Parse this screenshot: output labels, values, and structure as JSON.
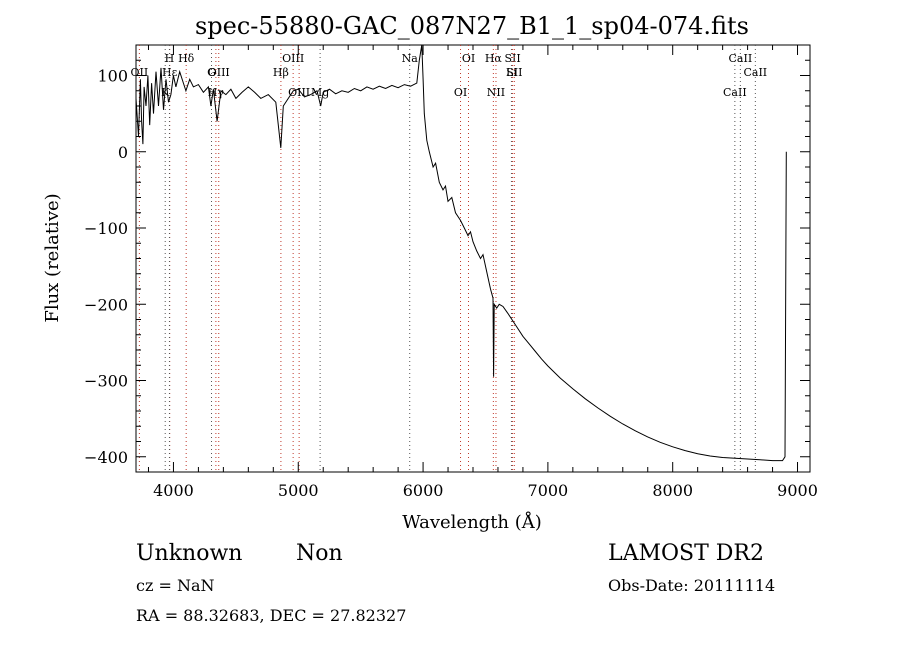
{
  "chart_data": {
    "type": "line",
    "title": "spec-55880-GAC_087N27_B1_1_sp04-074.fits",
    "xlabel": "Wavelength (Å)",
    "ylabel": "Flux (relative)",
    "xlim": [
      3700,
      9100
    ],
    "ylim": [
      -420,
      140
    ],
    "x_ticks": [
      4000,
      5000,
      6000,
      7000,
      8000,
      9000
    ],
    "y_ticks": [
      100,
      0,
      -100,
      -200,
      -300,
      -400
    ],
    "grid": false,
    "series": [
      {
        "values": [
          [
            3700,
            70
          ],
          [
            3720,
            20
          ],
          [
            3735,
            95
          ],
          [
            3745,
            40
          ],
          [
            3755,
            10
          ],
          [
            3765,
            85
          ],
          [
            3780,
            60
          ],
          [
            3795,
            100
          ],
          [
            3810,
            35
          ],
          [
            3825,
            90
          ],
          [
            3840,
            50
          ],
          [
            3860,
            105
          ],
          [
            3880,
            60
          ],
          [
            3900,
            110
          ],
          [
            3920,
            55
          ],
          [
            3940,
            95
          ],
          [
            3960,
            65
          ],
          [
            3980,
            75
          ],
          [
            4000,
            100
          ],
          [
            4020,
            85
          ],
          [
            4050,
            105
          ],
          [
            4080,
            90
          ],
          [
            4100,
            80
          ],
          [
            4130,
            95
          ],
          [
            4160,
            85
          ],
          [
            4200,
            88
          ],
          [
            4240,
            78
          ],
          [
            4280,
            85
          ],
          [
            4300,
            60
          ],
          [
            4320,
            82
          ],
          [
            4350,
            40
          ],
          [
            4380,
            80
          ],
          [
            4420,
            75
          ],
          [
            4460,
            82
          ],
          [
            4500,
            70
          ],
          [
            4550,
            78
          ],
          [
            4600,
            85
          ],
          [
            4650,
            78
          ],
          [
            4700,
            70
          ],
          [
            4760,
            75
          ],
          [
            4820,
            65
          ],
          [
            4860,
            5
          ],
          [
            4880,
            60
          ],
          [
            4920,
            70
          ],
          [
            4960,
            80
          ],
          [
            5000,
            82
          ],
          [
            5050,
            72
          ],
          [
            5100,
            75
          ],
          [
            5150,
            80
          ],
          [
            5180,
            60
          ],
          [
            5200,
            78
          ],
          [
            5250,
            82
          ],
          [
            5300,
            76
          ],
          [
            5350,
            80
          ],
          [
            5400,
            78
          ],
          [
            5450,
            83
          ],
          [
            5500,
            80
          ],
          [
            5550,
            85
          ],
          [
            5600,
            82
          ],
          [
            5650,
            86
          ],
          [
            5700,
            83
          ],
          [
            5750,
            87
          ],
          [
            5800,
            84
          ],
          [
            5850,
            88
          ],
          [
            5900,
            86
          ],
          [
            5950,
            90
          ],
          [
            5970,
            120
          ],
          [
            5990,
            140
          ],
          [
            6000,
            95
          ],
          [
            6010,
            50
          ],
          [
            6030,
            15
          ],
          [
            6050,
            0
          ],
          [
            6080,
            -20
          ],
          [
            6100,
            -15
          ],
          [
            6130,
            -40
          ],
          [
            6160,
            -50
          ],
          [
            6180,
            -45
          ],
          [
            6200,
            -65
          ],
          [
            6230,
            -60
          ],
          [
            6260,
            -80
          ],
          [
            6300,
            -90
          ],
          [
            6330,
            -100
          ],
          [
            6360,
            -110
          ],
          [
            6380,
            -105
          ],
          [
            6400,
            -118
          ],
          [
            6430,
            -130
          ],
          [
            6460,
            -140
          ],
          [
            6480,
            -135
          ],
          [
            6500,
            -150
          ],
          [
            6520,
            -165
          ],
          [
            6540,
            -180
          ],
          [
            6560,
            -192
          ],
          [
            6565,
            -295
          ],
          [
            6570,
            -200
          ],
          [
            6590,
            -205
          ],
          [
            6610,
            -200
          ],
          [
            6640,
            -203
          ],
          [
            6680,
            -212
          ],
          [
            6720,
            -222
          ],
          [
            6760,
            -232
          ],
          [
            6800,
            -242
          ],
          [
            6850,
            -252
          ],
          [
            6900,
            -262
          ],
          [
            6950,
            -272
          ],
          [
            7000,
            -281
          ],
          [
            7100,
            -297
          ],
          [
            7200,
            -311
          ],
          [
            7300,
            -324
          ],
          [
            7400,
            -336
          ],
          [
            7500,
            -347
          ],
          [
            7600,
            -357
          ],
          [
            7700,
            -366
          ],
          [
            7800,
            -374
          ],
          [
            7900,
            -381
          ],
          [
            8000,
            -387
          ],
          [
            8100,
            -392
          ],
          [
            8200,
            -396
          ],
          [
            8300,
            -399
          ],
          [
            8400,
            -401
          ],
          [
            8500,
            -402
          ],
          [
            8600,
            -403
          ],
          [
            8700,
            -404
          ],
          [
            8800,
            -405
          ],
          [
            8880,
            -405
          ],
          [
            8900,
            -400
          ],
          [
            8910,
            0
          ]
        ]
      }
    ],
    "line_markers": [
      {
        "label": "Hα",
        "lambda": 6563,
        "style": "em"
      },
      {
        "label": "Hβ",
        "lambda": 4861,
        "style": "em"
      },
      {
        "label": "Hγ",
        "lambda": 4340,
        "style": "em"
      },
      {
        "label": "Hδ",
        "lambda": 4102,
        "style": "em"
      },
      {
        "label": "Hε",
        "lambda": 3970,
        "style": "em"
      },
      {
        "label": "OIII",
        "lambda": 5007,
        "style": "em"
      },
      {
        "label": "OIII",
        "lambda": 4959,
        "style": "em"
      },
      {
        "label": "OIII",
        "lambda": 4363,
        "style": "em"
      },
      {
        "label": "NII",
        "lambda": 6584,
        "style": "em"
      },
      {
        "label": "SII",
        "lambda": 6717,
        "style": "em"
      },
      {
        "label": "SII",
        "lambda": 6731,
        "style": "em"
      },
      {
        "label": "OI",
        "lambda": 6300,
        "style": "em"
      },
      {
        "label": "OI",
        "lambda": 6364,
        "style": "em"
      },
      {
        "label": "OII",
        "lambda": 3727,
        "style": "em"
      },
      {
        "label": "K",
        "lambda": 3934,
        "style": "abs"
      },
      {
        "label": "H",
        "lambda": 3968,
        "style": "abs"
      },
      {
        "label": "G",
        "lambda": 4305,
        "style": "abs"
      },
      {
        "label": "Mg",
        "lambda": 5175,
        "style": "abs"
      },
      {
        "label": "Na",
        "lambda": 5893,
        "style": "abs"
      },
      {
        "label": "Li",
        "lambda": 6708,
        "style": "abs"
      },
      {
        "label": "CaII",
        "lambda": 8498,
        "style": "abs"
      },
      {
        "label": "CaII",
        "lambda": 8542,
        "style": "abs"
      },
      {
        "label": "CaII",
        "lambda": 8662,
        "style": "abs"
      }
    ]
  },
  "footer": {
    "class_label": "Unknown",
    "subclass_label": "Non",
    "survey_label": "LAMOST DR2",
    "redshift_label": "cz = NaN",
    "obs_date_label": "Obs-Date: 20111114",
    "coords_label": "RA =  88.32683, DEC =  27.82327"
  }
}
